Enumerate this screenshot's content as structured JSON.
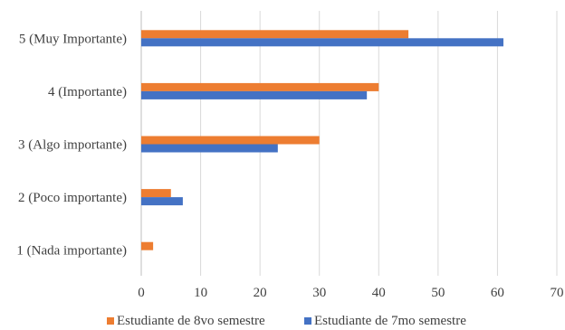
{
  "chart_data": {
    "type": "bar",
    "orientation": "horizontal",
    "title": "",
    "xlabel": "",
    "ylabel": "",
    "categories": [
      "1 (Nada importante)",
      "2 (Poco importante)",
      "3 (Algo importante)",
      "4 (Importante)",
      "5 (Muy Importante)"
    ],
    "series": [
      {
        "name": "Estudiante de 8vo semestre",
        "color": "#ED7D31",
        "values": [
          2,
          5,
          30,
          40,
          45
        ]
      },
      {
        "name": "Estudiante de 7mo semestre",
        "color": "#4472C4",
        "values": [
          0,
          7,
          23,
          38,
          61
        ]
      }
    ],
    "xlim": [
      0,
      70
    ],
    "xticks": [
      "0",
      "10",
      "20",
      "30",
      "40",
      "50",
      "60",
      "70"
    ],
    "grid": true,
    "legend_position": "bottom"
  }
}
